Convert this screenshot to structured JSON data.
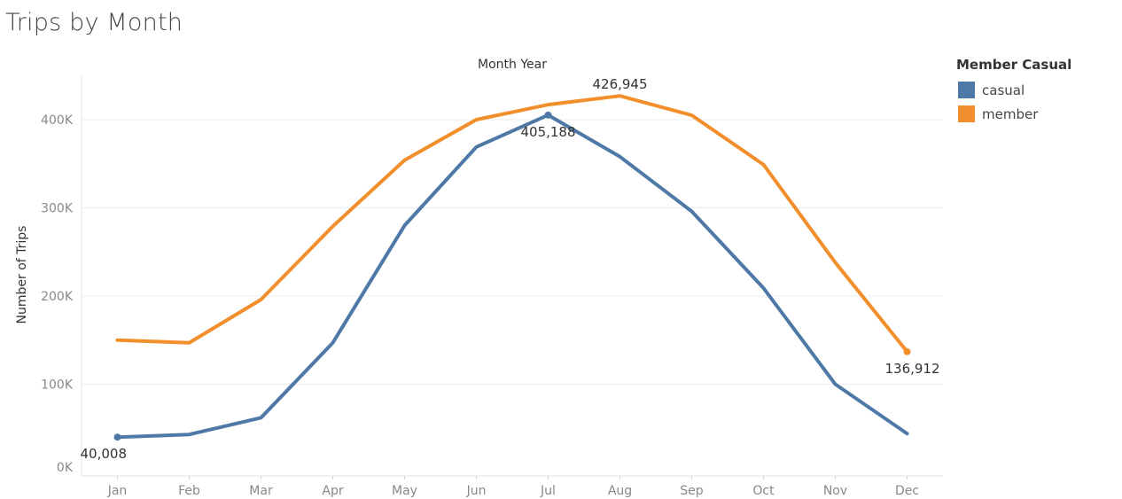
{
  "page": {
    "title": "Trips by Month"
  },
  "legend": {
    "title": "Member Casual",
    "items": [
      {
        "label": "casual",
        "color": "#4e79a7"
      },
      {
        "label": "member",
        "color": "#f28e2b"
      }
    ]
  },
  "chart_data": {
    "type": "line",
    "title": "Trips by Month",
    "xlabel": "Month Year",
    "ylabel": "Number of Trips",
    "categories": [
      "Jan",
      "Feb",
      "Mar",
      "Apr",
      "May",
      "Jun",
      "Jul",
      "Aug",
      "Sep",
      "Oct",
      "Nov",
      "Dec"
    ],
    "ylim": [
      0,
      450000
    ],
    "yticks": [
      {
        "value": 0,
        "label": "0K"
      },
      {
        "value": 100000,
        "label": "100K"
      },
      {
        "value": 200000,
        "label": "200K"
      },
      {
        "value": 300000,
        "label": "300K"
      },
      {
        "value": 400000,
        "label": "400K"
      }
    ],
    "grid": true,
    "legend_position": "top-right",
    "series": [
      {
        "name": "casual",
        "color": "#4e79a7",
        "values": [
          40008,
          43000,
          62000,
          147000,
          280000,
          369000,
          405188,
          358000,
          296000,
          209000,
          100000,
          44000
        ]
      },
      {
        "name": "member",
        "color": "#f28e2b",
        "values": [
          150000,
          147000,
          196000,
          279000,
          354000,
          400000,
          417000,
          426945,
          405000,
          349000,
          238000,
          136912
        ]
      }
    ],
    "annotations": [
      {
        "series": "casual",
        "category": "Jan",
        "text": "40,008",
        "position": "below",
        "marker": true
      },
      {
        "series": "casual",
        "category": "Jul",
        "text": "405,188",
        "position": "below",
        "marker": true
      },
      {
        "series": "member",
        "category": "Aug",
        "text": "426,945",
        "position": "above",
        "marker": false
      },
      {
        "series": "member",
        "category": "Dec",
        "text": "136,912",
        "position": "below",
        "marker": true
      }
    ]
  }
}
